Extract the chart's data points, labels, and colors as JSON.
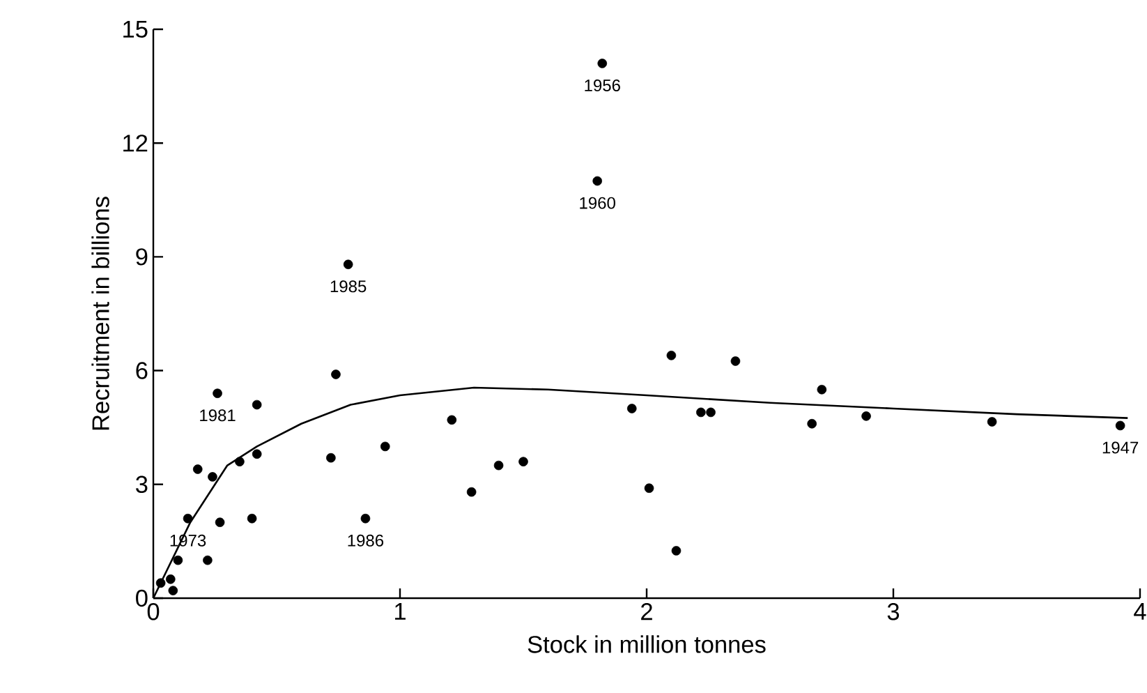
{
  "chart_data": {
    "type": "scatter",
    "xlabel": "Stock in million tonnes",
    "ylabel": "Recruitment in billions",
    "xlim": [
      0,
      4
    ],
    "ylim": [
      0,
      15
    ],
    "xticks": [
      0,
      1,
      2,
      3,
      4
    ],
    "yticks": [
      0,
      3,
      6,
      9,
      12,
      15
    ],
    "grid": false,
    "series": [
      {
        "color": "#000000",
        "marker": "circle",
        "x": [
          0.03,
          0.07,
          0.08,
          0.1,
          0.22,
          0.14,
          0.27,
          0.4,
          0.86,
          0.18,
          0.24,
          0.35,
          0.42,
          0.72,
          0.94,
          0.26,
          0.42,
          0.74,
          0.79,
          1.21,
          1.29,
          1.4,
          1.5,
          1.8,
          1.82,
          1.94,
          2.1,
          2.01,
          2.12,
          2.22,
          2.26,
          2.36,
          2.71,
          2.67,
          2.89,
          3.4,
          3.92
        ],
        "values": [
          0.4,
          0.5,
          0.2,
          1.0,
          1.0,
          2.1,
          2.0,
          2.1,
          2.1,
          3.4,
          3.2,
          3.6,
          3.8,
          3.7,
          4.0,
          5.4,
          5.1,
          5.9,
          8.8,
          4.7,
          2.8,
          3.5,
          3.6,
          11.0,
          14.1,
          5.0,
          6.4,
          2.9,
          1.25,
          4.9,
          4.9,
          6.25,
          5.5,
          4.6,
          4.8,
          4.65,
          4.55
        ]
      },
      {
        "type": "line",
        "color": "#000000",
        "marker": "none",
        "x": [
          0,
          0.15,
          0.3,
          0.42,
          0.6,
          0.8,
          1.0,
          1.3,
          1.6,
          2.0,
          2.5,
          3.0,
          3.5,
          3.95
        ],
        "values": [
          0,
          2.0,
          3.5,
          4.0,
          4.6,
          5.1,
          5.35,
          5.55,
          5.5,
          5.35,
          5.15,
          5.0,
          4.85,
          4.75
        ]
      }
    ],
    "annotations": [
      {
        "text": "1956",
        "x": 1.82,
        "y": 14.1
      },
      {
        "text": "1960",
        "x": 1.8,
        "y": 11.0
      },
      {
        "text": "1985",
        "x": 0.79,
        "y": 8.8
      },
      {
        "text": "1981",
        "x": 0.26,
        "y": 5.4
      },
      {
        "text": "1973",
        "x": 0.14,
        "y": 2.1
      },
      {
        "text": "1986",
        "x": 0.86,
        "y": 2.1
      },
      {
        "text": "1947",
        "x": 3.92,
        "y": 4.55
      }
    ]
  }
}
